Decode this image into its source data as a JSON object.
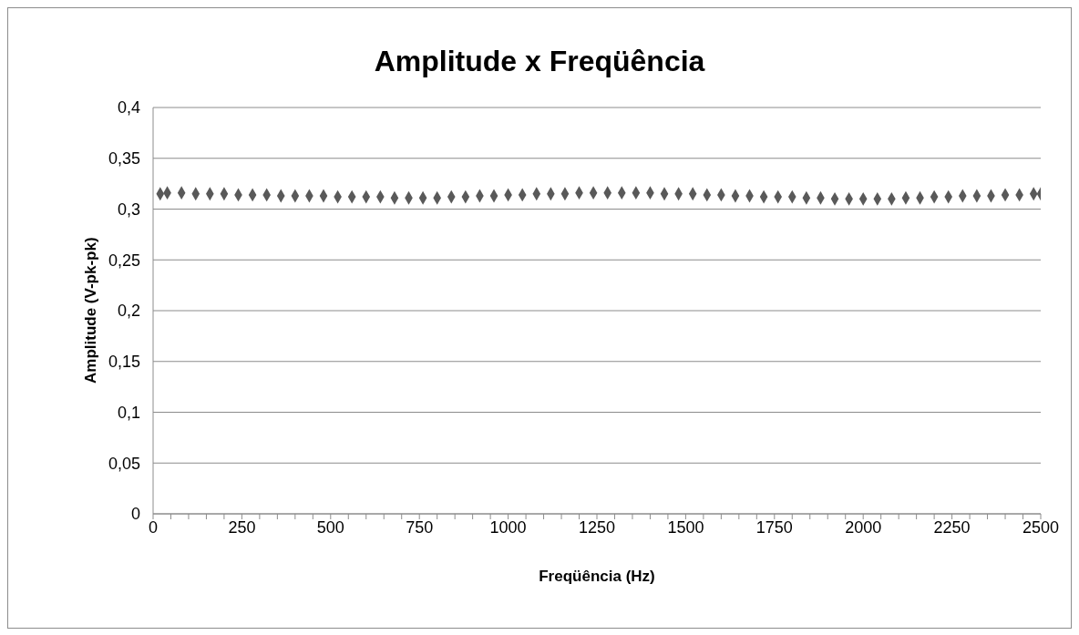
{
  "chart_data": {
    "type": "scatter",
    "title": "Amplitude x Freqüência",
    "xlabel": "Freqüência (Hz)",
    "ylabel": "Amplitude (V-pk-pk)",
    "x": [
      20,
      40,
      80,
      120,
      160,
      200,
      240,
      280,
      320,
      360,
      400,
      440,
      480,
      520,
      560,
      600,
      640,
      680,
      720,
      760,
      800,
      840,
      880,
      920,
      960,
      1000,
      1040,
      1080,
      1120,
      1160,
      1200,
      1240,
      1280,
      1320,
      1360,
      1400,
      1440,
      1480,
      1520,
      1560,
      1600,
      1640,
      1680,
      1720,
      1760,
      1800,
      1840,
      1880,
      1920,
      1960,
      2000,
      2040,
      2080,
      2120,
      2160,
      2200,
      2240,
      2280,
      2320,
      2360,
      2400,
      2440,
      2480,
      2500
    ],
    "values": [
      0.315,
      0.316,
      0.316,
      0.315,
      0.315,
      0.315,
      0.314,
      0.314,
      0.314,
      0.313,
      0.313,
      0.313,
      0.313,
      0.312,
      0.312,
      0.312,
      0.312,
      0.311,
      0.311,
      0.311,
      0.311,
      0.312,
      0.312,
      0.313,
      0.313,
      0.314,
      0.314,
      0.315,
      0.315,
      0.315,
      0.316,
      0.316,
      0.316,
      0.316,
      0.316,
      0.316,
      0.315,
      0.315,
      0.315,
      0.314,
      0.314,
      0.313,
      0.313,
      0.312,
      0.312,
      0.312,
      0.311,
      0.311,
      0.31,
      0.31,
      0.31,
      0.31,
      0.31,
      0.311,
      0.311,
      0.312,
      0.312,
      0.313,
      0.313,
      0.313,
      0.314,
      0.314,
      0.315,
      0.315
    ],
    "color": "#595959",
    "marker": "diamond",
    "grid": "y",
    "legend": false,
    "xlim": [
      0,
      2500
    ],
    "xticks": [
      0,
      {
        "value": 50,
        "label": null
      },
      {
        "value": 100,
        "label": null
      },
      {
        "value": 150,
        "label": null
      },
      {
        "value": 200,
        "label": null
      },
      250,
      {
        "value": 300,
        "label": null
      },
      {
        "value": 350,
        "label": null
      },
      {
        "value": 400,
        "label": null
      },
      {
        "value": 450,
        "label": null
      },
      500,
      {
        "value": 550,
        "label": null
      },
      {
        "value": 600,
        "label": null
      },
      {
        "value": 650,
        "label": null
      },
      {
        "value": 700,
        "label": null
      },
      750,
      {
        "value": 800,
        "label": null
      },
      {
        "value": 850,
        "label": null
      },
      {
        "value": 900,
        "label": null
      },
      {
        "value": 950,
        "label": null
      },
      1000,
      {
        "value": 1050,
        "label": null
      },
      {
        "value": 1100,
        "label": null
      },
      {
        "value": 1150,
        "label": null
      },
      {
        "value": 1200,
        "label": null
      },
      1250,
      {
        "value": 1300,
        "label": null
      },
      {
        "value": 1350,
        "label": null
      },
      {
        "value": 1400,
        "label": null
      },
      {
        "value": 1450,
        "label": null
      },
      1500,
      {
        "value": 1550,
        "label": null
      },
      {
        "value": 1600,
        "label": null
      },
      {
        "value": 1650,
        "label": null
      },
      {
        "value": 1700,
        "label": null
      },
      1750,
      {
        "value": 1800,
        "label": null
      },
      {
        "value": 1850,
        "label": null
      },
      {
        "value": 1900,
        "label": null
      },
      {
        "value": 1950,
        "label": null
      },
      2000,
      {
        "value": 2050,
        "label": null
      },
      {
        "value": 2100,
        "label": null
      },
      {
        "value": 2150,
        "label": null
      },
      {
        "value": 2200,
        "label": null
      },
      2250,
      {
        "value": 2300,
        "label": null
      },
      {
        "value": 2350,
        "label": null
      },
      {
        "value": 2400,
        "label": null
      },
      {
        "value": 2450,
        "label": null
      },
      2500
    ],
    "ylim": [
      0,
      0.4
    ],
    "yticks": [
      {
        "value": 0,
        "label": "0"
      },
      {
        "value": 0.05,
        "label": "0,05"
      },
      {
        "value": 0.1,
        "label": "0,1"
      },
      {
        "value": 0.15,
        "label": "0,15"
      },
      {
        "value": 0.2,
        "label": "0,2"
      },
      {
        "value": 0.25,
        "label": "0,25"
      },
      {
        "value": 0.3,
        "label": "0,3"
      },
      {
        "value": 0.35,
        "label": "0,35"
      },
      {
        "value": 0.4,
        "label": "0,4"
      }
    ]
  }
}
